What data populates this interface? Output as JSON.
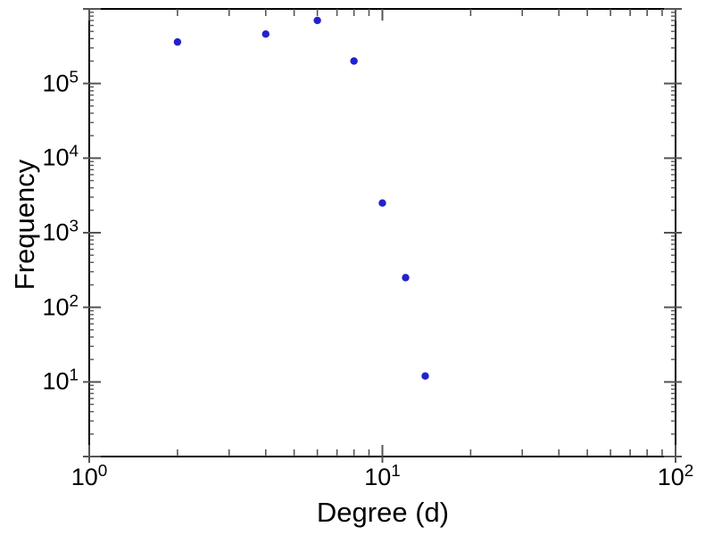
{
  "chart_data": {
    "type": "scatter",
    "title": "",
    "xlabel": "Degree (d)",
    "ylabel": "Frequency",
    "xscale": "log",
    "yscale": "log",
    "xlim": [
      1,
      100
    ],
    "ylim": [
      1,
      1000000
    ],
    "grid": false,
    "legend": "none",
    "marker_color": "#2222cc",
    "frame_color": "#000000",
    "tick_color": "#555555",
    "background": "#ffffff",
    "points": [
      {
        "x": 2,
        "y": 360000
      },
      {
        "x": 4,
        "y": 460000
      },
      {
        "x": 6,
        "y": 700000
      },
      {
        "x": 8,
        "y": 200000
      },
      {
        "x": 10,
        "y": 2500
      },
      {
        "x": 12,
        "y": 250
      },
      {
        "x": 14,
        "y": 12
      }
    ],
    "x_ticks": [
      {
        "value": 1,
        "base": "10",
        "exp": "0"
      },
      {
        "value": 10,
        "base": "10",
        "exp": "1"
      },
      {
        "value": 100,
        "base": "10",
        "exp": "2"
      }
    ],
    "y_ticks": [
      {
        "value": 10,
        "base": "10",
        "exp": "1"
      },
      {
        "value": 100,
        "base": "10",
        "exp": "2"
      },
      {
        "value": 1000,
        "base": "10",
        "exp": "3"
      },
      {
        "value": 10000,
        "base": "10",
        "exp": "4"
      },
      {
        "value": 100000,
        "base": "10",
        "exp": "5"
      }
    ]
  }
}
